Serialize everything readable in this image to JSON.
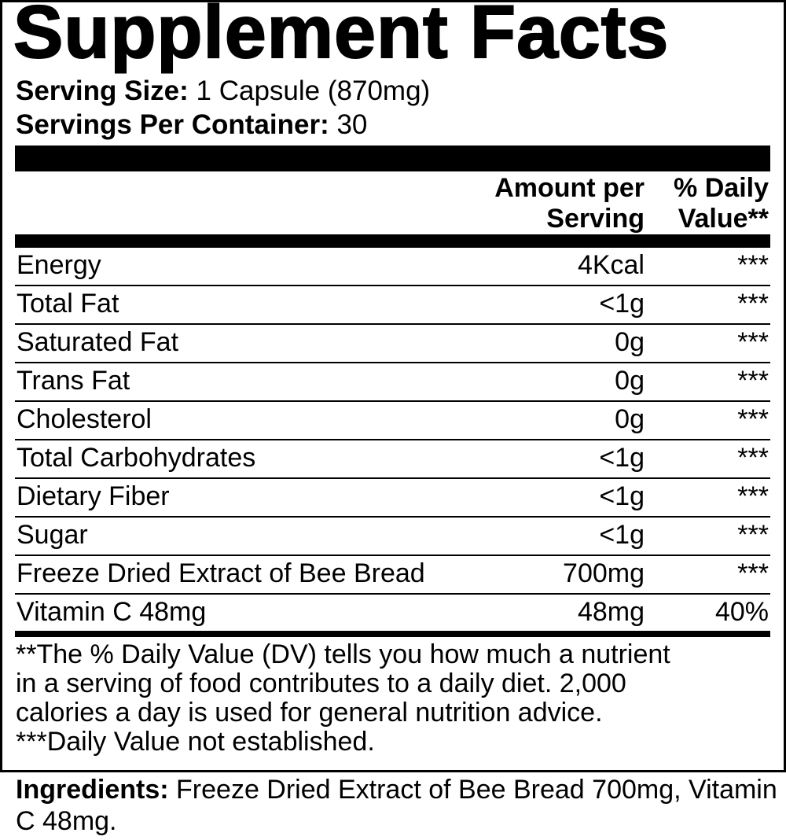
{
  "title": "Supplement Facts",
  "serving_size": {
    "label": "Serving Size:",
    "value": "1 Capsule (870mg)"
  },
  "servings_per_container": {
    "label": "Servings Per Container:",
    "value": "30"
  },
  "columns": {
    "amount": [
      "Amount per",
      "Serving"
    ],
    "dv": [
      "% Daily",
      "Value**"
    ]
  },
  "rows": [
    {
      "name": "Energy",
      "amount": "4Kcal",
      "dv": "***"
    },
    {
      "name": "Total Fat",
      "amount": "<1g",
      "dv": "***"
    },
    {
      "name": "Saturated Fat",
      "amount": "0g",
      "dv": "***"
    },
    {
      "name": "Trans Fat",
      "amount": "0g",
      "dv": "***"
    },
    {
      "name": "Cholesterol",
      "amount": "0g",
      "dv": "***"
    },
    {
      "name": "Total Carbohydrates",
      "amount": "<1g",
      "dv": "***"
    },
    {
      "name": "Dietary Fiber",
      "amount": "<1g",
      "dv": "***"
    },
    {
      "name": "Sugar",
      "amount": "<1g",
      "dv": "***"
    },
    {
      "name": "Freeze Dried Extract of Bee Bread",
      "amount": "700mg",
      "dv": "***"
    },
    {
      "name": "Vitamin C 48mg",
      "amount": "48mg",
      "dv": "40%"
    }
  ],
  "footnotes": [
    "**The % Daily Value (DV) tells you how much a nutrient",
    "in a serving of food contributes to a daily diet. 2,000",
    "calories a day is used for general nutrition advice.",
    "***Daily Value not established."
  ],
  "ingredients": {
    "label": "Ingredients:",
    "value": "Freeze Dried Extract of Bee Bread 700mg, Vitamin C 48mg."
  }
}
